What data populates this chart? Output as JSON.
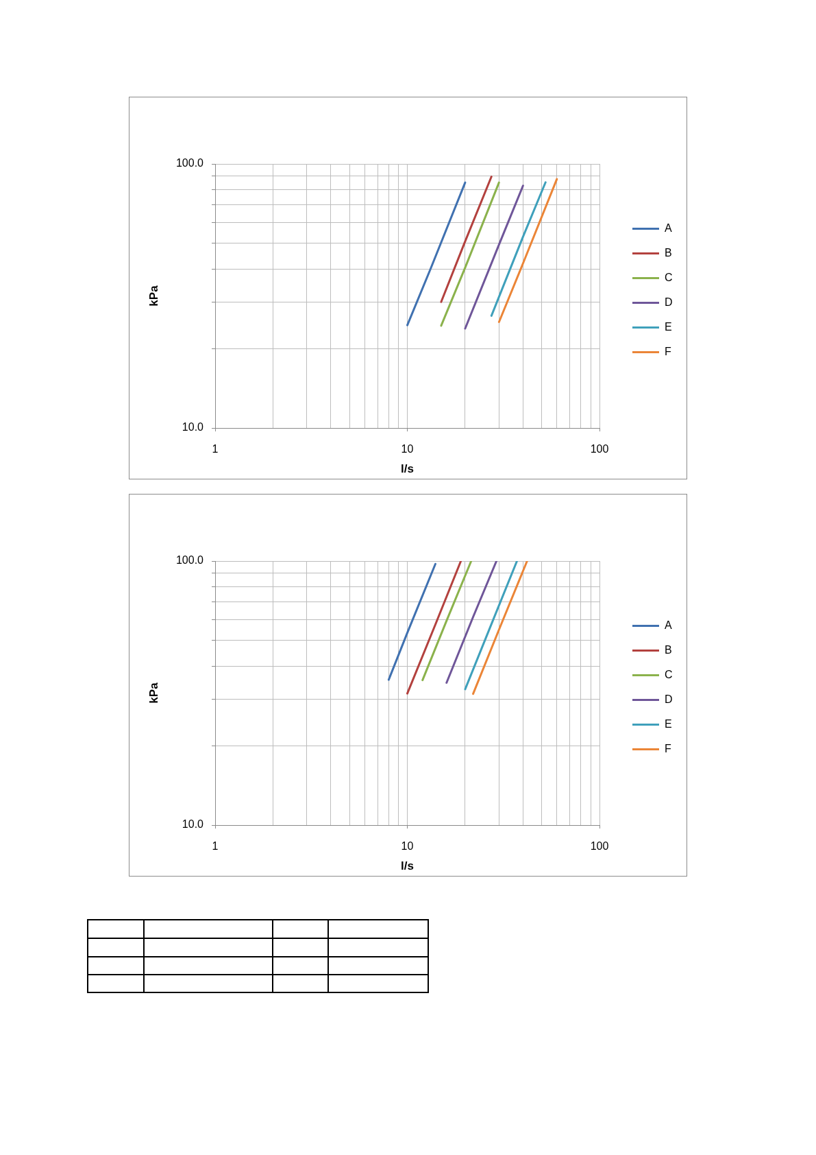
{
  "chart_data": [
    {
      "type": "line",
      "xlabel": "l/s",
      "ylabel": "kPa",
      "log": "xy",
      "grid": true,
      "legend": "right",
      "xlim": [
        1,
        100
      ],
      "ylim": [
        10,
        100
      ],
      "xticks": [
        1,
        {
          "value": 2,
          "label": null
        },
        {
          "value": 3,
          "label": null
        },
        {
          "value": 4,
          "label": null
        },
        {
          "value": 5,
          "label": null
        },
        {
          "value": 6,
          "label": null
        },
        {
          "value": 7,
          "label": null
        },
        {
          "value": 8,
          "label": null
        },
        {
          "value": 9,
          "label": null
        },
        10,
        {
          "value": 20,
          "label": null
        },
        {
          "value": 30,
          "label": null
        },
        {
          "value": 40,
          "label": null
        },
        {
          "value": 50,
          "label": null
        },
        {
          "value": 60,
          "label": null
        },
        {
          "value": 70,
          "label": null
        },
        {
          "value": 80,
          "label": null
        },
        {
          "value": 90,
          "label": null
        },
        100
      ],
      "yticks": [
        {
          "value": 10,
          "label": "10.0"
        },
        {
          "value": 20,
          "label": null
        },
        {
          "value": 30,
          "label": null
        },
        {
          "value": 40,
          "label": null
        },
        {
          "value": 50,
          "label": null
        },
        {
          "value": 60,
          "label": null
        },
        {
          "value": 70,
          "label": null
        },
        {
          "value": 80,
          "label": null
        },
        {
          "value": 90,
          "label": null
        },
        {
          "value": 100,
          "label": "100.0"
        }
      ],
      "series": [
        {
          "name": "A",
          "color": "#4071b0",
          "x": [
            10,
            13.2,
            20
          ],
          "values": [
            24.5,
            40,
            85
          ]
        },
        {
          "name": "B",
          "color": "#b3413e",
          "x": [
            15,
            19.8,
            27.4
          ],
          "values": [
            30,
            50,
            89.5
          ]
        },
        {
          "name": "C",
          "color": "#8bb24c",
          "x": [
            15,
            20,
            30
          ],
          "values": [
            24.4,
            40.5,
            85
          ]
        },
        {
          "name": "D",
          "color": "#6f5699",
          "x": [
            20,
            30,
            40
          ],
          "values": [
            23.8,
            49.5,
            82.7
          ]
        },
        {
          "name": "E",
          "color": "#3fa0bb",
          "x": [
            27.4,
            40,
            52.4
          ],
          "values": [
            26.6,
            53,
            85.2
          ]
        },
        {
          "name": "F",
          "color": "#eb8537",
          "x": [
            30,
            40,
            60
          ],
          "values": [
            25.2,
            42,
            87.6
          ]
        }
      ]
    },
    {
      "type": "line",
      "xlabel": "l/s",
      "ylabel": "kPa",
      "log": "xy",
      "grid": true,
      "legend": "right",
      "xlim": [
        1,
        100
      ],
      "ylim": [
        10,
        100
      ],
      "xticks": [
        1,
        {
          "value": 2,
          "label": null
        },
        {
          "value": 3,
          "label": null
        },
        {
          "value": 4,
          "label": null
        },
        {
          "value": 5,
          "label": null
        },
        {
          "value": 6,
          "label": null
        },
        {
          "value": 7,
          "label": null
        },
        {
          "value": 8,
          "label": null
        },
        {
          "value": 9,
          "label": null
        },
        10,
        {
          "value": 20,
          "label": null
        },
        {
          "value": 30,
          "label": null
        },
        {
          "value": 40,
          "label": null
        },
        {
          "value": 50,
          "label": null
        },
        {
          "value": 60,
          "label": null
        },
        {
          "value": 70,
          "label": null
        },
        {
          "value": 80,
          "label": null
        },
        {
          "value": 90,
          "label": null
        },
        100
      ],
      "yticks": [
        {
          "value": 10,
          "label": "10.0"
        },
        {
          "value": 20,
          "label": null
        },
        {
          "value": 30,
          "label": null
        },
        {
          "value": 40,
          "label": null
        },
        {
          "value": 50,
          "label": null
        },
        {
          "value": 60,
          "label": null
        },
        {
          "value": 70,
          "label": null
        },
        {
          "value": 80,
          "label": null
        },
        {
          "value": 90,
          "label": null
        },
        {
          "value": 100,
          "label": "100.0"
        }
      ],
      "series": [
        {
          "name": "A",
          "color": "#4071b0",
          "x": [
            8,
            10,
            14
          ],
          "values": [
            35.5,
            53.5,
            97.5
          ]
        },
        {
          "name": "B",
          "color": "#b3413e",
          "x": [
            10,
            14,
            19
          ],
          "values": [
            31.5,
            57.5,
            100
          ]
        },
        {
          "name": "C",
          "color": "#8bb24c",
          "x": [
            12,
            16,
            21.5
          ],
          "values": [
            35.4,
            59.4,
            100
          ]
        },
        {
          "name": "D",
          "color": "#6f5699",
          "x": [
            16,
            22,
            29.1
          ],
          "values": [
            34.6,
            61.4,
            100
          ]
        },
        {
          "name": "E",
          "color": "#3fa0bb",
          "x": [
            20,
            28,
            37.2
          ],
          "values": [
            32.7,
            60,
            100
          ]
        },
        {
          "name": "F",
          "color": "#eb8537",
          "x": [
            22,
            30,
            42
          ],
          "values": [
            31.4,
            55,
            100
          ]
        }
      ]
    }
  ]
}
